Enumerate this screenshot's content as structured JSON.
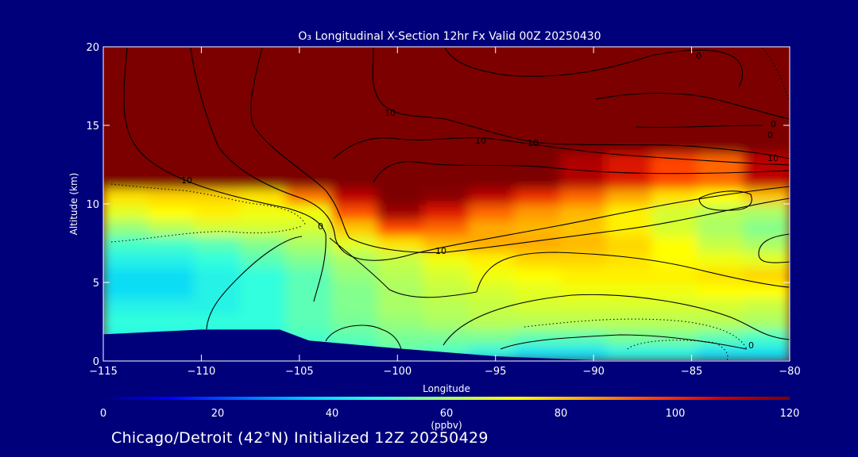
{
  "chart_data": {
    "type": "heatmap",
    "title": "O₃ Longitudinal X-Section 12hr  Fx Valid 00Z 20250430",
    "xlabel": "Longitude",
    "ylabel": "Altitude (km)",
    "xlim": [
      -115,
      -80
    ],
    "ylim": [
      0,
      20
    ],
    "xticks": [
      -115,
      -110,
      -105,
      -100,
      -95,
      -90,
      -85,
      -80
    ],
    "xtick_labels": [
      "−115",
      "−110",
      "−105",
      "−100",
      "−95",
      "−90",
      "−85",
      "−80"
    ],
    "yticks": [
      0,
      5,
      10,
      15,
      20
    ],
    "colorbar": {
      "label": "(ppbv)",
      "range": [
        0,
        120
      ],
      "ticks": [
        0,
        20,
        40,
        60,
        80,
        100,
        120
      ],
      "colors": [
        "#00007b",
        "#0000ff",
        "#0066ff",
        "#00ccff",
        "#33ffdd",
        "#aaff66",
        "#ffff00",
        "#ffaa00",
        "#ff4400",
        "#cc0000",
        "#7b0000"
      ]
    },
    "background_color": "#00007b",
    "contour_labels": [
      "10",
      "10",
      "10",
      "10",
      "10",
      "10",
      "0",
      "0",
      "0",
      "0",
      "0"
    ],
    "terrain_km": [
      [
        -115,
        1.7
      ],
      [
        -110,
        2.0
      ],
      [
        -106,
        2.0
      ],
      [
        -104.5,
        1.3
      ],
      [
        -100,
        0.8
      ],
      [
        -95,
        0.3
      ],
      [
        -90,
        0.05
      ],
      [
        -80,
        0.05
      ]
    ],
    "ozone_rows": [
      {
        "alt": 0.5,
        "values": [
          40,
          40,
          40,
          40,
          45,
          48,
          52,
          50,
          45,
          40,
          40,
          45,
          45,
          40,
          40
        ]
      },
      {
        "alt": 1.5,
        "values": [
          45,
          45,
          45,
          45,
          50,
          52,
          55,
          55,
          55,
          52,
          52,
          55,
          55,
          52,
          50
        ]
      },
      {
        "alt": 2.5,
        "values": [
          48,
          48,
          48,
          48,
          52,
          55,
          58,
          60,
          62,
          62,
          62,
          62,
          62,
          62,
          60
        ]
      },
      {
        "alt": 3.5,
        "values": [
          45,
          45,
          45,
          48,
          52,
          56,
          60,
          62,
          64,
          66,
          66,
          66,
          66,
          66,
          64
        ]
      },
      {
        "alt": 4.5,
        "values": [
          40,
          40,
          45,
          48,
          52,
          56,
          60,
          64,
          66,
          68,
          70,
          70,
          70,
          72,
          72
        ]
      },
      {
        "alt": 5.5,
        "values": [
          40,
          40,
          45,
          48,
          52,
          58,
          62,
          66,
          70,
          72,
          74,
          74,
          74,
          76,
          78
        ]
      },
      {
        "alt": 6.5,
        "values": [
          45,
          45,
          48,
          52,
          56,
          60,
          64,
          70,
          74,
          78,
          78,
          76,
          72,
          70,
          68
        ]
      },
      {
        "alt": 7.5,
        "values": [
          50,
          50,
          52,
          56,
          60,
          68,
          76,
          82,
          84,
          84,
          82,
          78,
          72,
          64,
          60
        ]
      },
      {
        "alt": 8.5,
        "values": [
          58,
          62,
          66,
          66,
          66,
          80,
          96,
          92,
          84,
          82,
          80,
          74,
          66,
          60,
          56
        ]
      },
      {
        "alt": 9.5,
        "values": [
          68,
          72,
          74,
          70,
          70,
          95,
          115,
          104,
          92,
          86,
          82,
          74,
          66,
          62,
          60
        ]
      },
      {
        "alt": 10.5,
        "values": [
          76,
          78,
          78,
          76,
          90,
          110,
          120,
          118,
          110,
          100,
          92,
          84,
          76,
          72,
          80
        ]
      },
      {
        "alt": 11.5,
        "values": [
          120,
          120,
          120,
          120,
          120,
          120,
          120,
          120,
          120,
          120,
          112,
          104,
          96,
          92,
          110
        ]
      },
      {
        "alt": 15.0,
        "values": [
          120,
          120,
          120,
          120,
          120,
          120,
          120,
          120,
          120,
          120,
          120,
          120,
          120,
          120,
          120
        ]
      },
      {
        "alt": 19.5,
        "values": [
          120,
          120,
          120,
          120,
          120,
          120,
          120,
          120,
          120,
          120,
          120,
          120,
          120,
          120,
          120
        ]
      }
    ]
  },
  "footer": "Chicago/Detroit (42°N) Initialized 12Z 20250429"
}
